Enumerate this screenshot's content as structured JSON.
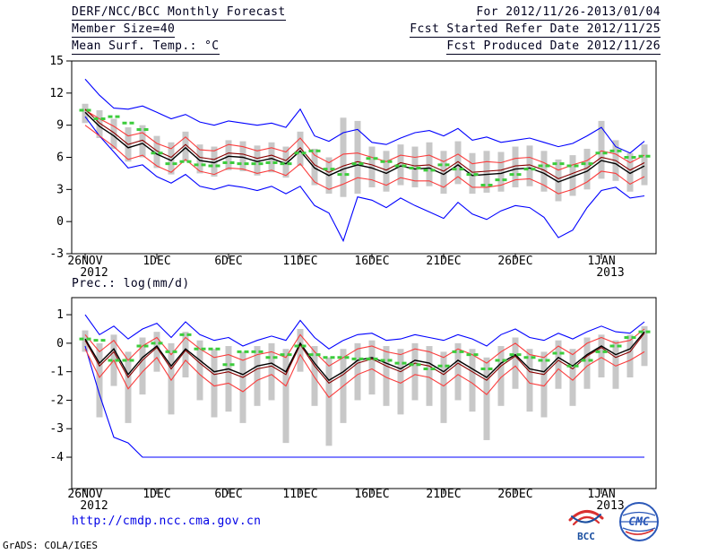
{
  "header": {
    "title": "DERF/NCC/BCC Monthly Forecast",
    "period": "For 2012/11/26-2013/01/04",
    "member_size": "Member Size=40",
    "refer_date": "Fcst Started Refer Date 2012/11/25",
    "variable_label": "Mean Surf. Temp.: °C",
    "produced_date": "Fcst Produced Date 2012/11/26"
  },
  "footer": {
    "url": "http://cmdp.ncc.cma.gov.cn",
    "grads_credit": "GrADS: COLA/IGES",
    "bcc_logo_text": "BCC",
    "cmc_logo_text": "CMC"
  },
  "colors": {
    "line_blue": "#0000ff",
    "line_red": "#fa3c3c",
    "line_black": "#000000",
    "line_maroon": "#8b0000",
    "dash_green": "#3ccc3c",
    "bar_gray": "#c8c8c8",
    "url_blue": "#0000e6"
  },
  "chart_data": [
    {
      "type": "line",
      "title": "Mean Surf. Temp.: °C",
      "ylim": [
        -3,
        15
      ],
      "yticks": [
        15,
        12,
        9,
        6,
        3,
        0,
        -3
      ],
      "n_days": 40,
      "x_tick_days": [
        0,
        5,
        10,
        15,
        20,
        25,
        30,
        36
      ],
      "x_tick_labels": [
        "26NOV",
        "1DEC",
        "6DEC",
        "11DEC",
        "16DEC",
        "21DEC",
        "26DEC",
        "1JAN"
      ],
      "x_year_labels": [
        {
          "day": 0,
          "label": "2012"
        },
        {
          "day": 36,
          "label": "2013"
        }
      ],
      "series": [
        {
          "name": "ensemble-max",
          "color": "#0000ff",
          "values": [
            13.3,
            11.8,
            10.6,
            10.5,
            10.8,
            10.2,
            9.6,
            10.0,
            9.3,
            9.0,
            9.4,
            9.2,
            9.0,
            9.2,
            8.8,
            10.5,
            8.0,
            7.5,
            8.3,
            8.6,
            7.4,
            7.2,
            7.8,
            8.3,
            8.5,
            8.0,
            8.7,
            7.6,
            7.9,
            7.4,
            7.6,
            7.8,
            7.4,
            7.0,
            7.3,
            8.0,
            8.8,
            7.0,
            6.4,
            7.5
          ]
        },
        {
          "name": "ensemble-min",
          "color": "#0000ff",
          "values": [
            9.8,
            8.0,
            6.5,
            5.0,
            5.3,
            4.2,
            3.6,
            4.4,
            3.3,
            3.0,
            3.4,
            3.2,
            2.9,
            3.3,
            2.6,
            3.3,
            1.5,
            0.8,
            -1.8,
            2.3,
            2.0,
            1.3,
            2.2,
            1.5,
            0.9,
            0.3,
            1.8,
            0.7,
            0.2,
            1.0,
            1.5,
            1.3,
            0.4,
            -1.5,
            -0.8,
            1.3,
            2.9,
            3.2,
            2.2,
            2.4
          ]
        },
        {
          "name": "upper-spread",
          "color": "#fa3c3c",
          "values": [
            10.4,
            9.6,
            8.9,
            8.0,
            8.3,
            7.3,
            6.8,
            7.9,
            6.7,
            6.6,
            7.2,
            7.0,
            6.6,
            6.9,
            6.5,
            7.8,
            6.2,
            5.5,
            6.3,
            6.4,
            6.0,
            5.6,
            6.2,
            6.0,
            6.2,
            5.6,
            6.3,
            5.4,
            5.6,
            5.5,
            5.9,
            6.0,
            5.5,
            4.8,
            5.3,
            5.7,
            6.6,
            6.3,
            5.5,
            6.2
          ]
        },
        {
          "name": "lower-spread",
          "color": "#fa3c3c",
          "values": [
            9.0,
            8.0,
            7.0,
            5.8,
            6.2,
            5.2,
            4.6,
            5.8,
            4.7,
            4.4,
            5.0,
            4.9,
            4.5,
            4.8,
            4.3,
            5.4,
            3.7,
            3.0,
            3.5,
            4.1,
            3.9,
            3.4,
            4.1,
            3.8,
            3.8,
            3.2,
            4.2,
            3.2,
            3.2,
            3.4,
            3.9,
            4.0,
            3.4,
            2.6,
            3.0,
            3.7,
            4.7,
            4.5,
            3.5,
            4.2
          ]
        },
        {
          "name": "control",
          "color": "#8b0000",
          "values": [
            10.5,
            9.2,
            8.3,
            7.2,
            7.6,
            6.6,
            6.0,
            7.2,
            6.0,
            5.8,
            6.4,
            6.3,
            5.9,
            6.2,
            5.7,
            6.9,
            5.3,
            4.6,
            5.2,
            5.6,
            5.3,
            4.8,
            5.5,
            5.2,
            5.3,
            4.7,
            5.6,
            4.6,
            4.7,
            4.8,
            5.2,
            5.3,
            4.8,
            4.0,
            4.5,
            5.0,
            6.0,
            5.7,
            4.8,
            5.5
          ]
        },
        {
          "name": "ensemble-mean",
          "color": "#000000",
          "values": [
            10.2,
            8.9,
            8.0,
            6.9,
            7.3,
            6.3,
            5.7,
            6.9,
            5.7,
            5.5,
            6.1,
            6.0,
            5.6,
            5.9,
            5.4,
            6.6,
            5.0,
            4.3,
            4.9,
            5.3,
            5.0,
            4.5,
            5.2,
            4.9,
            5.0,
            4.4,
            5.3,
            4.3,
            4.4,
            4.5,
            4.9,
            5.0,
            4.5,
            3.7,
            4.2,
            4.7,
            5.7,
            5.4,
            4.5,
            5.2
          ]
        }
      ],
      "bars": {
        "name": "ensemble-spread",
        "color": "#c8c8c8",
        "lo": [
          9.2,
          7.8,
          6.8,
          5.6,
          6.0,
          5.0,
          4.4,
          5.6,
          4.5,
          4.2,
          4.8,
          4.7,
          4.3,
          4.6,
          4.1,
          5.2,
          3.4,
          2.6,
          2.3,
          2.6,
          3.2,
          2.8,
          3.4,
          3.2,
          3.3,
          2.6,
          3.5,
          2.6,
          2.7,
          2.8,
          3.2,
          3.3,
          2.8,
          1.9,
          2.4,
          3.0,
          4.0,
          3.8,
          2.8,
          3.4
        ],
        "hi": [
          11.0,
          10.4,
          9.6,
          8.8,
          9.0,
          8.0,
          7.4,
          8.4,
          7.2,
          7.0,
          7.6,
          7.5,
          7.1,
          7.4,
          7.0,
          8.4,
          6.8,
          6.0,
          9.7,
          9.4,
          7.0,
          6.6,
          7.2,
          7.0,
          7.4,
          6.6,
          7.5,
          6.4,
          6.6,
          6.5,
          7.0,
          7.1,
          6.6,
          5.8,
          6.2,
          6.8,
          9.4,
          7.6,
          6.4,
          7.2
        ]
      },
      "dashes": {
        "name": "climatology",
        "color": "#3ccc3c",
        "values": [
          10.4,
          9.6,
          9.8,
          9.2,
          8.6,
          6.4,
          5.4,
          5.6,
          5.3,
          5.2,
          5.5,
          5.4,
          5.4,
          5.5,
          5.4,
          6.4,
          6.6,
          4.9,
          4.4,
          5.4,
          5.9,
          5.6,
          5.2,
          5.0,
          4.8,
          5.3,
          4.9,
          4.4,
          3.4,
          3.9,
          4.4,
          4.9,
          5.2,
          5.4,
          5.2,
          5.4,
          6.4,
          6.6,
          6.0,
          6.1
        ]
      }
    },
    {
      "type": "line",
      "title": "Prec.: log(mm/d)",
      "ylim": [
        -5.1,
        1.6
      ],
      "yticks": [
        1,
        0,
        -1,
        -2,
        -3,
        -4
      ],
      "n_days": 40,
      "x_tick_days": [
        0,
        5,
        10,
        15,
        20,
        25,
        30,
        36
      ],
      "x_tick_labels": [
        "26NOV",
        "1DEC",
        "6DEC",
        "11DEC",
        "16DEC",
        "21DEC",
        "26DEC",
        "1JAN"
      ],
      "x_year_labels": [
        {
          "day": 0,
          "label": "2012"
        },
        {
          "day": 36,
          "label": "2013"
        }
      ],
      "series": [
        {
          "name": "ensemble-max",
          "color": "#0000ff",
          "values": [
            1.0,
            0.3,
            0.6,
            0.15,
            0.5,
            0.7,
            0.2,
            0.75,
            0.3,
            0.1,
            0.2,
            -0.1,
            0.1,
            0.25,
            0.1,
            0.8,
            0.2,
            -0.2,
            0.1,
            0.3,
            0.35,
            0.1,
            0.15,
            0.3,
            0.2,
            0.1,
            0.3,
            0.15,
            -0.1,
            0.3,
            0.5,
            0.2,
            0.1,
            0.35,
            0.15,
            0.4,
            0.6,
            0.4,
            0.35,
            0.75
          ]
        },
        {
          "name": "ensemble-min",
          "color": "#0000ff",
          "values": [
            -0.1,
            -1.8,
            -3.3,
            -3.5,
            -4.0,
            -4.0,
            -4.0,
            -4.0,
            -4.0,
            -4.0,
            -4.0,
            -4.0,
            -4.0,
            -4.0,
            -4.0,
            -4.0,
            -4.0,
            -4.0,
            -4.0,
            -4.0,
            -4.0,
            -4.0,
            -4.0,
            -4.0,
            -4.0,
            -4.0,
            -4.0,
            -4.0,
            -4.0,
            -4.0,
            -4.0,
            -4.0,
            -4.0,
            -4.0,
            -4.0,
            -4.0,
            -4.0,
            -4.0,
            -4.0,
            -4.0
          ]
        },
        {
          "name": "upper-spread",
          "color": "#fa3c3c",
          "values": [
            0.3,
            -0.3,
            0.1,
            -0.6,
            -0.1,
            0.2,
            -0.4,
            0.2,
            -0.2,
            -0.5,
            -0.4,
            -0.6,
            -0.4,
            -0.3,
            -0.5,
            0.3,
            -0.3,
            -0.8,
            -0.5,
            -0.2,
            -0.1,
            -0.3,
            -0.4,
            -0.2,
            -0.3,
            -0.5,
            -0.2,
            -0.4,
            -0.7,
            -0.3,
            0.0,
            -0.4,
            -0.5,
            -0.1,
            -0.4,
            0.0,
            0.2,
            0.0,
            0.1,
            0.5
          ]
        },
        {
          "name": "lower-spread",
          "color": "#fa3c3c",
          "values": [
            -0.2,
            -1.2,
            -0.6,
            -1.6,
            -1.0,
            -0.5,
            -1.3,
            -0.6,
            -1.1,
            -1.5,
            -1.4,
            -1.7,
            -1.3,
            -1.1,
            -1.5,
            -0.4,
            -1.2,
            -1.9,
            -1.5,
            -1.1,
            -0.9,
            -1.2,
            -1.4,
            -1.1,
            -1.2,
            -1.5,
            -1.1,
            -1.4,
            -1.8,
            -1.2,
            -0.8,
            -1.4,
            -1.5,
            -0.9,
            -1.3,
            -0.8,
            -0.5,
            -0.8,
            -0.6,
            -0.3
          ]
        },
        {
          "name": "control",
          "color": "#8b0000",
          "values": [
            0.1,
            -0.8,
            -0.3,
            -1.2,
            -0.6,
            -0.15,
            -0.9,
            -0.25,
            -0.7,
            -1.1,
            -1.0,
            -1.2,
            -0.9,
            -0.8,
            -1.1,
            -0.05,
            -0.8,
            -1.4,
            -1.1,
            -0.7,
            -0.55,
            -0.8,
            -1.0,
            -0.7,
            -0.8,
            -1.1,
            -0.7,
            -1.0,
            -1.3,
            -0.8,
            -0.45,
            -1.0,
            -1.1,
            -0.6,
            -0.9,
            -0.45,
            -0.15,
            -0.5,
            -0.3,
            0.35
          ]
        },
        {
          "name": "ensemble-mean",
          "color": "#000000",
          "values": [
            0.15,
            -0.7,
            -0.2,
            -1.1,
            -0.5,
            -0.1,
            -0.8,
            -0.2,
            -0.6,
            -1.0,
            -0.9,
            -1.1,
            -0.8,
            -0.7,
            -1.0,
            0.0,
            -0.7,
            -1.3,
            -1.0,
            -0.6,
            -0.5,
            -0.7,
            -0.9,
            -0.6,
            -0.7,
            -1.0,
            -0.6,
            -0.9,
            -1.2,
            -0.7,
            -0.4,
            -0.9,
            -1.0,
            -0.5,
            -0.8,
            -0.4,
            -0.1,
            -0.4,
            -0.2,
            0.4
          ]
        }
      ],
      "bars": {
        "name": "ensemble-spread",
        "color": "#c8c8c8",
        "lo": [
          -0.3,
          -2.6,
          -1.5,
          -2.8,
          -1.8,
          -1.0,
          -2.5,
          -1.2,
          -2.0,
          -2.6,
          -2.4,
          -2.8,
          -2.2,
          -2.0,
          -3.5,
          -1.0,
          -2.2,
          -3.6,
          -2.8,
          -2.0,
          -1.8,
          -2.2,
          -2.5,
          -2.0,
          -2.2,
          -2.8,
          -2.0,
          -2.4,
          -3.4,
          -2.2,
          -1.6,
          -2.4,
          -2.6,
          -1.6,
          -2.2,
          -1.6,
          -1.2,
          -1.6,
          -1.2,
          -0.8
        ],
        "hi": [
          0.45,
          0.0,
          0.3,
          -0.3,
          0.2,
          0.4,
          0.0,
          0.4,
          0.1,
          -0.2,
          -0.1,
          -0.3,
          -0.1,
          0.0,
          -0.2,
          0.5,
          -0.1,
          -0.5,
          -0.2,
          0.0,
          0.1,
          -0.1,
          -0.2,
          0.0,
          -0.1,
          -0.3,
          0.0,
          -0.2,
          -0.5,
          -0.1,
          0.2,
          -0.2,
          -0.3,
          0.1,
          -0.2,
          0.2,
          0.3,
          0.1,
          0.3,
          0.6
        ]
      },
      "dashes": {
        "name": "climatology",
        "color": "#3ccc3c",
        "values": [
          0.15,
          0.1,
          -0.6,
          -0.6,
          -0.1,
          0.0,
          -0.3,
          0.3,
          -0.2,
          -0.2,
          -0.75,
          -0.3,
          -0.3,
          -0.5,
          -0.4,
          -0.1,
          -0.4,
          -0.5,
          -0.5,
          -0.55,
          -0.55,
          -0.6,
          -0.7,
          -0.75,
          -0.9,
          -0.8,
          -0.3,
          -0.4,
          -0.9,
          -0.6,
          -0.4,
          -0.5,
          -0.6,
          -0.35,
          -0.8,
          -0.6,
          -0.3,
          -0.1,
          0.2,
          0.4
        ]
      }
    }
  ]
}
